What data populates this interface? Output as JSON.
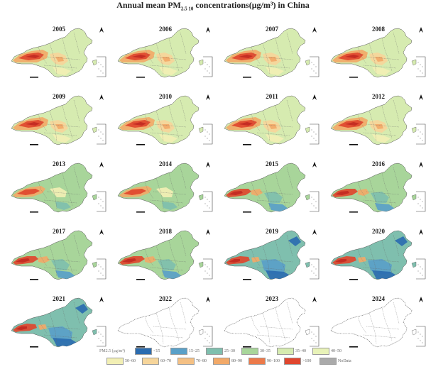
{
  "title": {
    "prefix": "Annual mean PM",
    "sub": "2.5",
    "mid": "10",
    "suffix": " concentrations(μg/m³) in China"
  },
  "colors": {
    "blue_dark": "#2b6cb0",
    "blue": "#5aa0c8",
    "teal": "#7fbfae",
    "green": "#a8d59a",
    "lightgreen": "#d6ebb0",
    "yellow": "#f2efb4",
    "lightorange": "#f6d59a",
    "orange": "#f2a968",
    "darkorange": "#ec7a4a",
    "red": "#e0462e",
    "deepred": "#c22a22",
    "gray": "#aaaaaa"
  },
  "panels": [
    {
      "year": "2005",
      "palette": "hot"
    },
    {
      "year": "2006",
      "palette": "hot"
    },
    {
      "year": "2007",
      "palette": "hot"
    },
    {
      "year": "2008",
      "palette": "hot"
    },
    {
      "year": "2009",
      "palette": "hot"
    },
    {
      "year": "2010",
      "palette": "hot"
    },
    {
      "year": "2011",
      "palette": "hot"
    },
    {
      "year": "2012",
      "palette": "hot"
    },
    {
      "year": "2013",
      "palette": "mid"
    },
    {
      "year": "2014",
      "palette": "mid"
    },
    {
      "year": "2015",
      "palette": "cool"
    },
    {
      "year": "2016",
      "palette": "cool"
    },
    {
      "year": "2017",
      "palette": "cool"
    },
    {
      "year": "2018",
      "palette": "cool"
    },
    {
      "year": "2019",
      "palette": "cooler"
    },
    {
      "year": "2020",
      "palette": "cooler"
    },
    {
      "year": "2021",
      "palette": "cooler"
    },
    {
      "year": "2022",
      "palette": "blank"
    },
    {
      "year": "2023",
      "palette": "blank"
    },
    {
      "year": "2024",
      "palette": "blank"
    }
  ],
  "legend": {
    "unit_label": "PM2.5 (μg/m³)",
    "items": [
      {
        "label": "<15",
        "color": "#2b6cb0"
      },
      {
        "label": "15–25",
        "color": "#5aa0c8"
      },
      {
        "label": "25–30",
        "color": "#7fbfae"
      },
      {
        "label": "30–35",
        "color": "#a8d59a"
      },
      {
        "label": "35–40",
        "color": "#d6ebb0"
      },
      {
        "label": "40–50",
        "color": "#e8f2b8"
      },
      {
        "label": "50–60",
        "color": "#f2efb4"
      },
      {
        "label": "60–70",
        "color": "#f6d59a"
      },
      {
        "label": "70–80",
        "color": "#f4c084"
      },
      {
        "label": "80–90",
        "color": "#f2a968"
      },
      {
        "label": "90–100",
        "color": "#ec7a4a"
      },
      {
        "label": ">100",
        "color": "#e0462e"
      },
      {
        "label": "NoData",
        "color": "#aaaaaa"
      }
    ]
  }
}
